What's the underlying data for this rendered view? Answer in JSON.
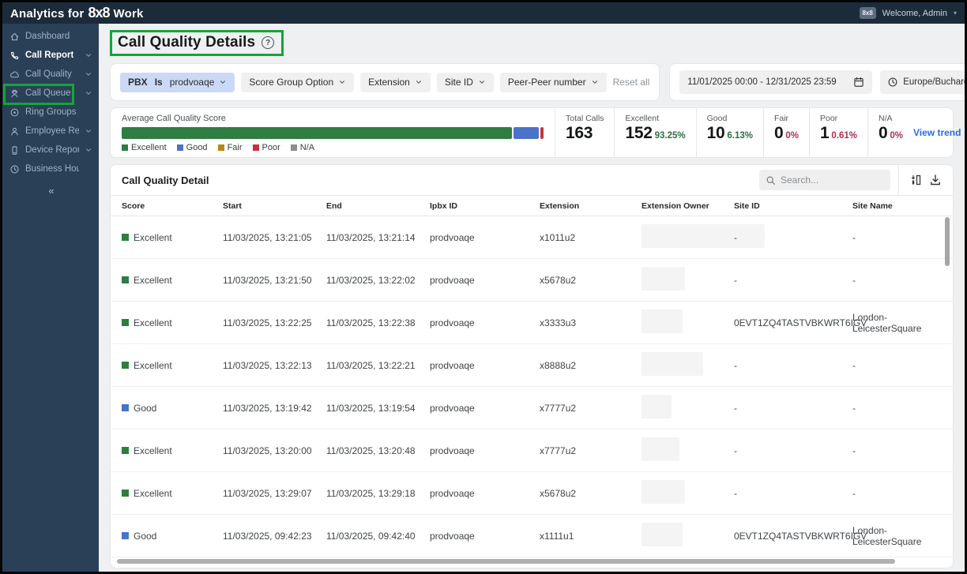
{
  "topbar": {
    "title_prefix": "Analytics for",
    "logo": "8x8",
    "title_suffix": "Work",
    "avatar_badge": "8x8",
    "welcome": "Welcome, Admin",
    "caret_icon": "▾"
  },
  "sidebar": {
    "items": [
      {
        "label": "Dashboard",
        "icon": "home-icon",
        "chevron": false,
        "active": false
      },
      {
        "label": "Call Report",
        "icon": "phone-icon",
        "chevron": true,
        "active": true
      },
      {
        "label": "Call Quality",
        "icon": "cloud-icon",
        "chevron": true,
        "active": false,
        "highlighted": true
      },
      {
        "label": "Call Queue",
        "icon": "queue-icon",
        "chevron": true,
        "active": false
      },
      {
        "label": "Ring Groups Su...",
        "icon": "ring-groups-icon",
        "chevron": false,
        "active": false
      },
      {
        "label": "Employee Report",
        "icon": "person-icon",
        "chevron": true,
        "active": false
      },
      {
        "label": "Device Report",
        "icon": "device-icon",
        "chevron": true,
        "active": false
      },
      {
        "label": "Business Hours ...",
        "icon": "clock-icon",
        "chevron": false,
        "active": false
      }
    ],
    "collapse_icon": "«"
  },
  "page": {
    "title": "Call Quality Details",
    "help_icon": "?"
  },
  "filters": {
    "chips": [
      {
        "prefix": "PBX",
        "operator": "Is",
        "value": "prodvoaqe",
        "active": true
      },
      {
        "label": "Score Group Option"
      },
      {
        "label": "Extension"
      },
      {
        "label": "Site ID"
      },
      {
        "label": "Peer-Peer number"
      }
    ],
    "reset_label": "Reset all",
    "date_range": "11/01/2025 00:00 - 12/31/2025 23:59",
    "timezone": "Europe/Bucharest"
  },
  "summary": {
    "label": "Average Call Quality Score",
    "legend": [
      {
        "label": "Excellent",
        "color": "#2e7d43"
      },
      {
        "label": "Good",
        "color": "#4a73c9"
      },
      {
        "label": "Fair",
        "color": "#b8860b"
      },
      {
        "label": "Poor",
        "color": "#c5333a"
      },
      {
        "label": "N/A",
        "color": "#8d8d8d"
      }
    ],
    "stats": [
      {
        "label": "Total Calls",
        "value": "163",
        "pct": "",
        "tone": ""
      },
      {
        "label": "Excellent",
        "value": "152",
        "pct": "93.25%",
        "tone": "green"
      },
      {
        "label": "Good",
        "value": "10",
        "pct": "6.13%",
        "tone": "green"
      },
      {
        "label": "Fair",
        "value": "0",
        "pct": "0%",
        "tone": "red"
      },
      {
        "label": "Poor",
        "value": "1",
        "pct": "0.61%",
        "tone": "red"
      },
      {
        "label": "N/A",
        "value": "0",
        "pct": "0%",
        "tone": "red"
      }
    ],
    "view_trend": "View trend"
  },
  "chart_data": {
    "type": "bar",
    "title": "Average Call Quality Score",
    "orientation": "horizontal-stacked",
    "categories": [
      "Excellent",
      "Good",
      "Fair",
      "Poor",
      "N/A"
    ],
    "values": [
      93.25,
      6.13,
      0,
      0.61,
      0
    ],
    "counts": [
      152,
      10,
      0,
      1,
      0
    ],
    "total_calls": 163,
    "unit": "%",
    "colors": [
      "#2e7d43",
      "#4a73c9",
      "#b8860b",
      "#c5333a",
      "#8d8d8d"
    ],
    "legend_position": "bottom"
  },
  "table": {
    "title": "Call Quality Detail",
    "search_placeholder": "Search...",
    "columns": [
      "Score",
      "Start",
      "End",
      "Ipbx ID",
      "Extension",
      "Extension Owner",
      "Site ID",
      "Site Name"
    ],
    "rows": [
      {
        "score": "Excellent",
        "start": "11/03/2025, 13:21:05",
        "end": "11/03/2025, 13:21:14",
        "ipbx": "prodvoaqe",
        "extension": "x1011u2",
        "owner_redacted": true,
        "site_id": "-",
        "site_name": "-"
      },
      {
        "score": "Excellent",
        "start": "11/03/2025, 13:21:50",
        "end": "11/03/2025, 13:22:02",
        "ipbx": "prodvoaqe",
        "extension": "x5678u2",
        "owner_redacted": true,
        "site_id": "-",
        "site_name": "-"
      },
      {
        "score": "Excellent",
        "start": "11/03/2025, 13:22:25",
        "end": "11/03/2025, 13:22:38",
        "ipbx": "prodvoaqe",
        "extension": "x3333u3",
        "owner_redacted": true,
        "site_id": "0EVT1ZQ4TASTVBKWRT6IGV",
        "site_name": "London-LeicesterSquare"
      },
      {
        "score": "Excellent",
        "start": "11/03/2025, 13:22:13",
        "end": "11/03/2025, 13:22:21",
        "ipbx": "prodvoaqe",
        "extension": "x8888u2",
        "owner_redacted": true,
        "site_id": "-",
        "site_name": "-"
      },
      {
        "score": "Good",
        "start": "11/03/2025, 13:19:42",
        "end": "11/03/2025, 13:19:54",
        "ipbx": "prodvoaqe",
        "extension": "x7777u2",
        "owner_redacted": true,
        "site_id": "-",
        "site_name": "-"
      },
      {
        "score": "Excellent",
        "start": "11/03/2025, 13:20:00",
        "end": "11/03/2025, 13:20:48",
        "ipbx": "prodvoaqe",
        "extension": "x7777u2",
        "owner_redacted": true,
        "site_id": "-",
        "site_name": "-"
      },
      {
        "score": "Excellent",
        "start": "11/03/2025, 13:29:07",
        "end": "11/03/2025, 13:29:18",
        "ipbx": "prodvoaqe",
        "extension": "x5678u2",
        "owner_redacted": true,
        "site_id": "-",
        "site_name": "-"
      },
      {
        "score": "Good",
        "start": "11/03/2025, 09:42:23",
        "end": "11/03/2025, 09:42:40",
        "ipbx": "prodvoaqe",
        "extension": "x1111u1",
        "owner_redacted": true,
        "site_id": "0EVT1ZQ4TASTVBKWRT6IGV",
        "site_name": "London-LeicesterSquare"
      }
    ]
  },
  "colors": {
    "annotation_highlight": "#16a33c",
    "topbar_bg": "#1c2b3a",
    "sidebar_bg": "#2a4057",
    "excellent": "#2e7d43",
    "good": "#4a73c9",
    "fair": "#b8860b",
    "poor": "#c5333a",
    "na": "#8d8d8d",
    "pct_green": "#2c6e3f",
    "pct_red": "#ad2f52",
    "link_blue": "#2b6be4"
  }
}
